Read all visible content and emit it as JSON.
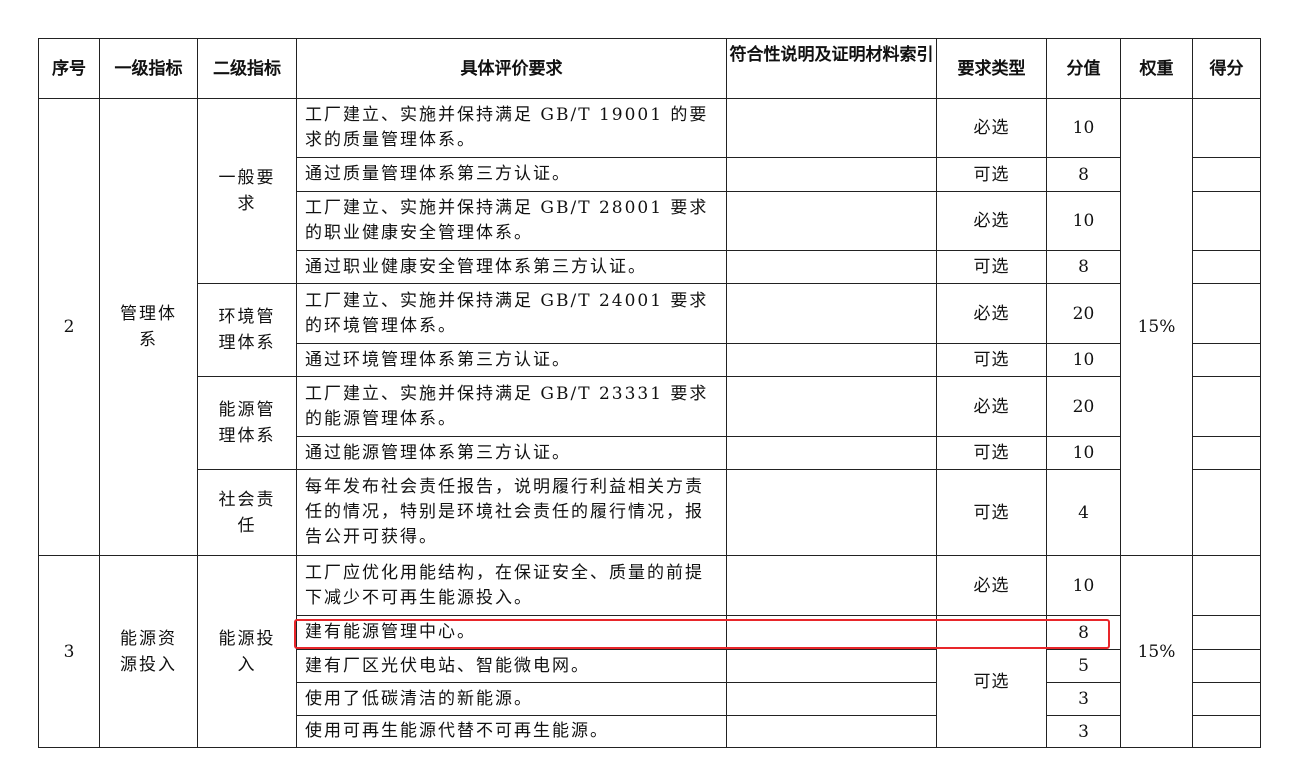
{
  "headers": [
    "序号",
    "一级指标",
    "二级指标",
    "具体评价要求",
    "符合性说明及证明材料索引",
    "要求类型",
    "分值",
    "权重",
    "得分"
  ],
  "sections": [
    {
      "no": "2",
      "level1": "管理体系",
      "weight": "15%",
      "groups": [
        {
          "level2": "一般要求",
          "rows": [
            {
              "req": "工厂建立、实施并保持满足 GB/T 19001 的要求的质量管理体系。",
              "type": "必选",
              "score": "10"
            },
            {
              "req": "通过质量管理体系第三方认证。",
              "type": "可选",
              "score": "8"
            },
            {
              "req": "工厂建立、实施并保持满足 GB/T 28001 要求的职业健康安全管理体系。",
              "type": "必选",
              "score": "10"
            },
            {
              "req": "通过职业健康安全管理体系第三方认证。",
              "type": "可选",
              "score": "8"
            }
          ]
        },
        {
          "level2": "环境管理体系",
          "rows": [
            {
              "req": "工厂建立、实施并保持满足 GB/T 24001 要求的环境管理体系。",
              "type": "必选",
              "score": "20"
            },
            {
              "req": "通过环境管理体系第三方认证。",
              "type": "可选",
              "score": "10"
            }
          ]
        },
        {
          "level2": "能源管理体系",
          "rows": [
            {
              "req": "工厂建立、实施并保持满足 GB/T 23331 要求的能源管理体系。",
              "type": "必选",
              "score": "20"
            },
            {
              "req": "通过能源管理体系第三方认证。",
              "type": "可选",
              "score": "10"
            }
          ]
        },
        {
          "level2": "社会责任",
          "rows": [
            {
              "req": "每年发布社会责任报告，说明履行利益相关方责任的情况，特别是环境社会责任的履行情况，报告公开可获得。",
              "type": "可选",
              "score": "4"
            }
          ]
        }
      ]
    },
    {
      "no": "3",
      "level1": "能源资源投入",
      "weight": "15%",
      "groups": [
        {
          "level2": "能源投入",
          "rows": [
            {
              "req": "工厂应优化用能结构，在保证安全、质量的前提下减少不可再生能源投入。",
              "type": "必选",
              "score": "10"
            },
            {
              "req": "建有能源管理中心。",
              "type": "可选",
              "score": "8"
            },
            {
              "req": "建有厂区光伏电站、智能微电网。",
              "score": "5"
            },
            {
              "req": "使用了低碳清洁的新能源。",
              "score": "3"
            },
            {
              "req": "使用可再生能源代替不可再生能源。",
              "score": "3"
            }
          ]
        }
      ]
    }
  ],
  "highlight_color": "#e8262a"
}
